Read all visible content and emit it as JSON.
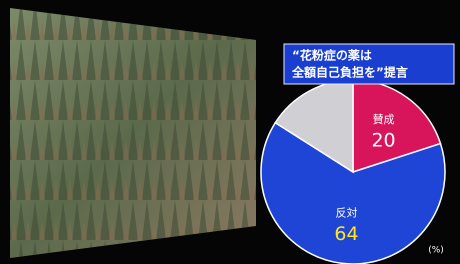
{
  "chart_data": {
    "type": "pie",
    "title": [
      "“花粉症の薬は",
      "全額自己負担を”提言"
    ],
    "unit_label": "(%)",
    "categories": [
      "賛成",
      "反対",
      null
    ],
    "values": [
      20,
      64,
      16
    ],
    "colors": [
      "#d8145a",
      "#1f45d6",
      "#cfcfd4"
    ],
    "label_colors": [
      "#ffffff",
      "#ffe81a",
      null
    ]
  }
}
